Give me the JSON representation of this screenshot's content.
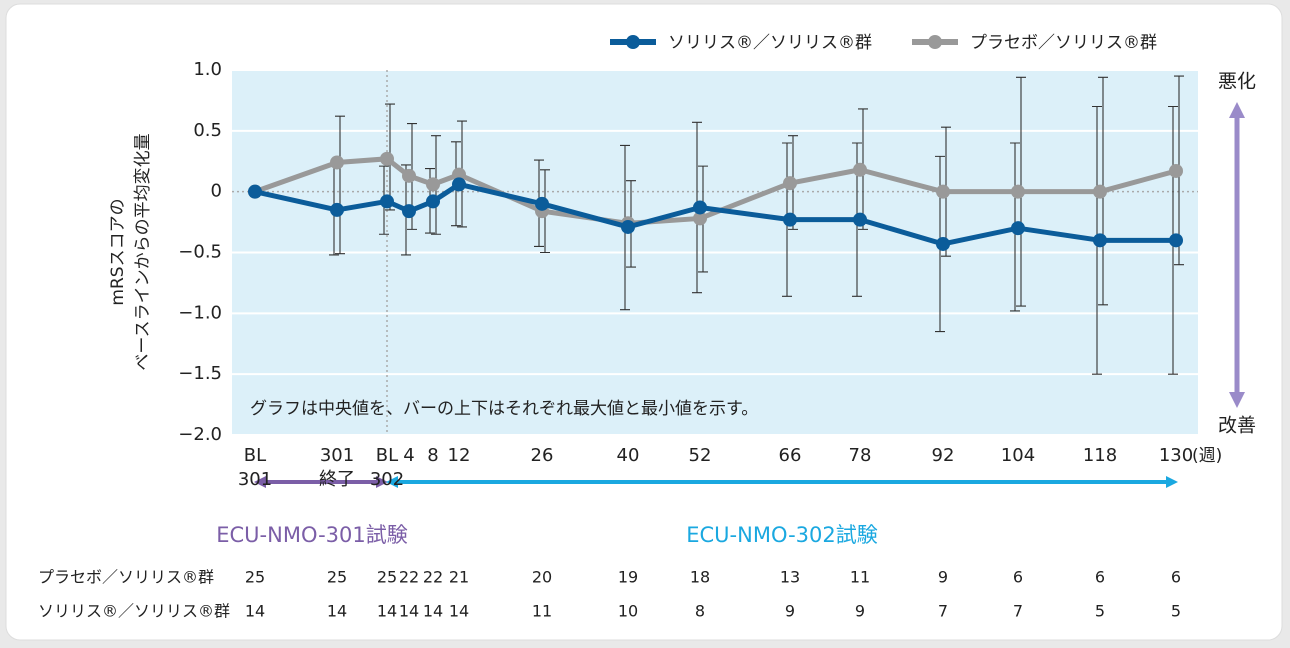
{
  "chart_data": {
    "type": "line",
    "categories": [
      [
        "BL",
        "301"
      ],
      [
        "301",
        "終了"
      ],
      [
        "BL",
        "302"
      ],
      [
        "4"
      ],
      [
        "8"
      ],
      [
        "12"
      ],
      [
        "26"
      ],
      [
        "40"
      ],
      [
        "52"
      ],
      [
        "66"
      ],
      [
        "78"
      ],
      [
        "92"
      ],
      [
        "104"
      ],
      [
        "118"
      ],
      [
        "130"
      ]
    ],
    "x_unit": "(週)",
    "ylabel": [
      "mRSスコアの",
      "ベースラインからの平均変化量"
    ],
    "ylim": [
      -2.0,
      1.0
    ],
    "yticks": [
      {
        "value": -2.0,
        "label": "−2.0"
      },
      {
        "value": -1.5,
        "label": "−1.5"
      },
      {
        "value": -1.0,
        "label": "−1.0"
      },
      {
        "value": -0.5,
        "label": "−0.5"
      },
      0,
      0.5,
      {
        "value": 1.0,
        "label": "1.0"
      }
    ],
    "grid": true,
    "series": [
      {
        "name": "ソリリス®／ソリリス®群",
        "color": "#0b5c9a",
        "values": [
          0,
          -0.15,
          -0.08,
          -0.16,
          -0.08,
          0.06,
          -0.1,
          -0.29,
          -0.13,
          -0.23,
          -0.23,
          -0.43,
          -0.3,
          -0.4,
          -0.4
        ],
        "max": [
          null,
          0.22,
          0.21,
          0.22,
          0.19,
          0.41,
          0.26,
          0.38,
          0.57,
          0.4,
          0.4,
          0.29,
          0.4,
          0.7,
          0.7
        ],
        "min": [
          null,
          -0.52,
          -0.35,
          -0.52,
          -0.34,
          -0.28,
          -0.45,
          -0.97,
          -0.83,
          -0.86,
          -0.86,
          -1.15,
          -0.98,
          -1.5,
          -1.5
        ]
      },
      {
        "name": "プラセボ／ソリリス®群",
        "color": "#999999",
        "values": [
          0,
          0.24,
          0.27,
          0.13,
          0.06,
          0.14,
          -0.16,
          -0.26,
          -0.22,
          0.07,
          0.18,
          0,
          0,
          0,
          0.17
        ],
        "max": [
          null,
          0.62,
          0.72,
          0.56,
          0.46,
          0.58,
          0.18,
          0.09,
          0.21,
          0.46,
          0.68,
          0.53,
          0.94,
          0.94,
          0.95
        ],
        "min": [
          null,
          -0.51,
          -0.15,
          -0.31,
          -0.35,
          -0.29,
          -0.5,
          -0.62,
          -0.66,
          -0.31,
          -0.31,
          -0.53,
          -0.94,
          -0.93,
          -0.6
        ]
      }
    ],
    "annotation": "グラフは中央値を、バーの上下はそれぞれ最大値と最小値を示す。",
    "worse_label": "悪化",
    "better_label": "改善",
    "phases": [
      "ECU-NMO-301試験",
      "ECU-NMO-302試験"
    ],
    "counts": [
      {
        "name": "プラセボ／ソリリス®群",
        "values": [
          25,
          25,
          25,
          22,
          22,
          21,
          20,
          19,
          18,
          13,
          11,
          9,
          6,
          6,
          6
        ]
      },
      {
        "name": "ソリリス®／ソリリス®群",
        "values": [
          14,
          14,
          14,
          14,
          14,
          14,
          11,
          10,
          8,
          9,
          9,
          7,
          7,
          5,
          5
        ]
      }
    ]
  }
}
